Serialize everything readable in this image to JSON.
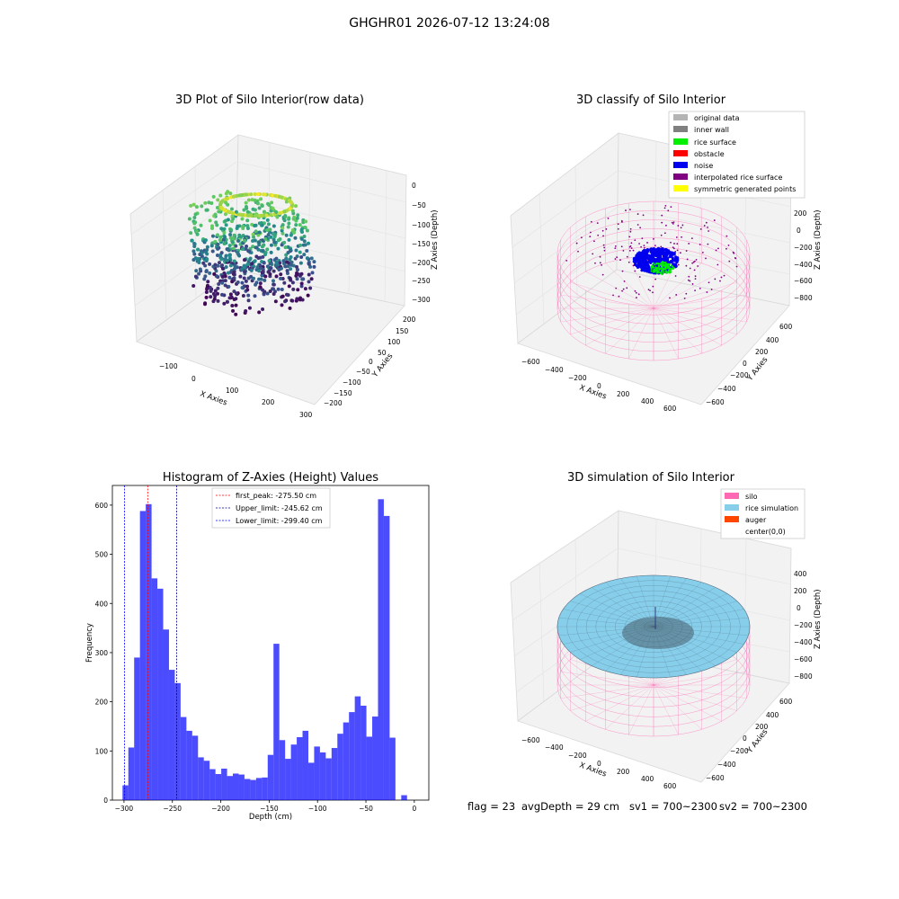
{
  "suptitle": "GHGHR01 2026-07-12 13:24:08",
  "panels": {
    "raw": {
      "title": "3D Plot of Silo Interior(row data)",
      "xlabel": "X Axies",
      "ylabel": "Y Axies",
      "zlabel": "Z Axies (Depth)",
      "xticks": [
        "−100",
        "0",
        "100",
        "200",
        "300"
      ],
      "yticks": [
        "200",
        "150",
        "100",
        "50",
        "0",
        "−50",
        "−100",
        "−150",
        "−200"
      ],
      "zticks": [
        "0",
        "−50",
        "−100",
        "−150",
        "−200",
        "−250",
        "−300"
      ]
    },
    "classify": {
      "title": "3D classify of Silo Interior",
      "xlabel": "X Axies",
      "ylabel": "Y Axies",
      "zlabel": "Z Axies (Depth)",
      "xticks": [
        "−600",
        "−400",
        "−200",
        "0",
        "200",
        "400",
        "600"
      ],
      "yticks": [
        "600",
        "400",
        "200",
        "0",
        "−200",
        "−400",
        "−600"
      ],
      "zticks": [
        "200",
        "0",
        "−200",
        "−400",
        "−600",
        "−800"
      ],
      "legend": [
        {
          "label": "original data",
          "color": "#b4b4b4"
        },
        {
          "label": "inner wall",
          "color": "#808080"
        },
        {
          "label": "rice surface",
          "color": "#00ee00"
        },
        {
          "label": "obstacle",
          "color": "#ff0000"
        },
        {
          "label": "noise",
          "color": "#0000ee"
        },
        {
          "label": "interpolated rice surface",
          "color": "#800080"
        },
        {
          "label": "symmetric generated points",
          "color": "#ffff00"
        }
      ]
    },
    "simulation": {
      "title": "3D simulation of Silo Interior",
      "xlabel": "X Axies",
      "ylabel": "Y Axies",
      "zlabel": "Z Axies (Depth)",
      "xticks": [
        "−600",
        "−400",
        "−200",
        "0",
        "200",
        "400",
        "600"
      ],
      "yticks": [
        "600",
        "400",
        "200",
        "0",
        "−200",
        "−400",
        "−600"
      ],
      "zticks": [
        "400",
        "200",
        "0",
        "−200",
        "−400",
        "−600",
        "−800"
      ],
      "legend": [
        {
          "label": "silo",
          "color": "#ff69b4"
        },
        {
          "label": "rice simulation",
          "color": "#87ceeb"
        },
        {
          "label": "auger",
          "color": "#ff4500"
        },
        {
          "label": "center(0,0)",
          "color": ""
        }
      ]
    }
  },
  "footer": {
    "flag": "flag = 23",
    "avg": "avgDepth = 29 cm",
    "sv1": "sv1 = 700~2300",
    "sv2": "sv2 = 700~2300"
  },
  "chart_data": {
    "type": "bar",
    "title": "Histogram of Z-Axies (Height) Values",
    "xlabel": "Depth (cm)",
    "ylabel": "Frequency",
    "xlim": [
      -312,
      15
    ],
    "ylim": [
      0,
      640
    ],
    "xticks": [
      -300,
      -250,
      -200,
      -150,
      -100,
      -50,
      0
    ],
    "yticks": [
      0,
      100,
      200,
      300,
      400,
      500,
      600
    ],
    "bin_start": -301.5,
    "bin_width": 6,
    "values": [
      30,
      107,
      290,
      588,
      602,
      451,
      430,
      347,
      265,
      238,
      169,
      141,
      131,
      87,
      80,
      63,
      53,
      64,
      49,
      54,
      52,
      43,
      41,
      45,
      46,
      92,
      318,
      122,
      84,
      113,
      128,
      141,
      76,
      109,
      97,
      85,
      106,
      135,
      158,
      179,
      211,
      192,
      129,
      170,
      612,
      578,
      127,
      0,
      10
    ],
    "bar_color": "#0000ff",
    "lines": [
      {
        "label": "first_peak: -275.50 cm",
        "x": -275.5,
        "color": "#ff0000"
      },
      {
        "label": "Upper_limit: -245.62 cm",
        "x": -245.62,
        "color": "#00008b"
      },
      {
        "label": "Lower_limit: -299.40 cm",
        "x": -299.4,
        "color": "#0000ff"
      }
    ]
  }
}
